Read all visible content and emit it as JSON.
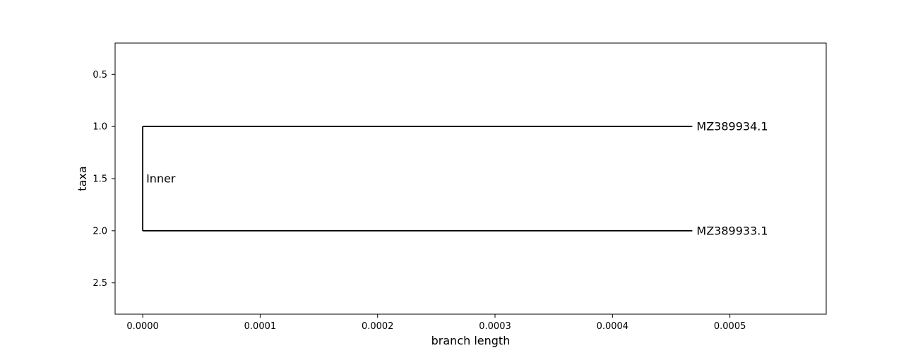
{
  "chart_data": {
    "type": "phylogenetic-tree",
    "xlabel": "branch length",
    "ylabel": "taxa",
    "xlim": [
      -2.35e-05,
      0.000582
    ],
    "ylim": [
      2.8,
      0.2
    ],
    "xticks": [
      {
        "value": 0.0,
        "label": "0.0000"
      },
      {
        "value": 0.0001,
        "label": "0.0001"
      },
      {
        "value": 0.0002,
        "label": "0.0002"
      },
      {
        "value": 0.0003,
        "label": "0.0003"
      },
      {
        "value": 0.0004,
        "label": "0.0004"
      },
      {
        "value": 0.0005,
        "label": "0.0005"
      }
    ],
    "yticks": [
      {
        "value": 0.5,
        "label": "0.5"
      },
      {
        "value": 1.0,
        "label": "1.0"
      },
      {
        "value": 1.5,
        "label": "1.5"
      },
      {
        "value": 2.0,
        "label": "2.0"
      },
      {
        "value": 2.5,
        "label": "2.5"
      }
    ],
    "internal_node": {
      "name": "Inner",
      "x": 0.0,
      "y": 1.5
    },
    "leaves": [
      {
        "name": "MZ389934.1",
        "x": 0.000468,
        "y": 1.0
      },
      {
        "name": "MZ389933.1",
        "x": 0.000468,
        "y": 2.0
      }
    ],
    "grid": false
  }
}
